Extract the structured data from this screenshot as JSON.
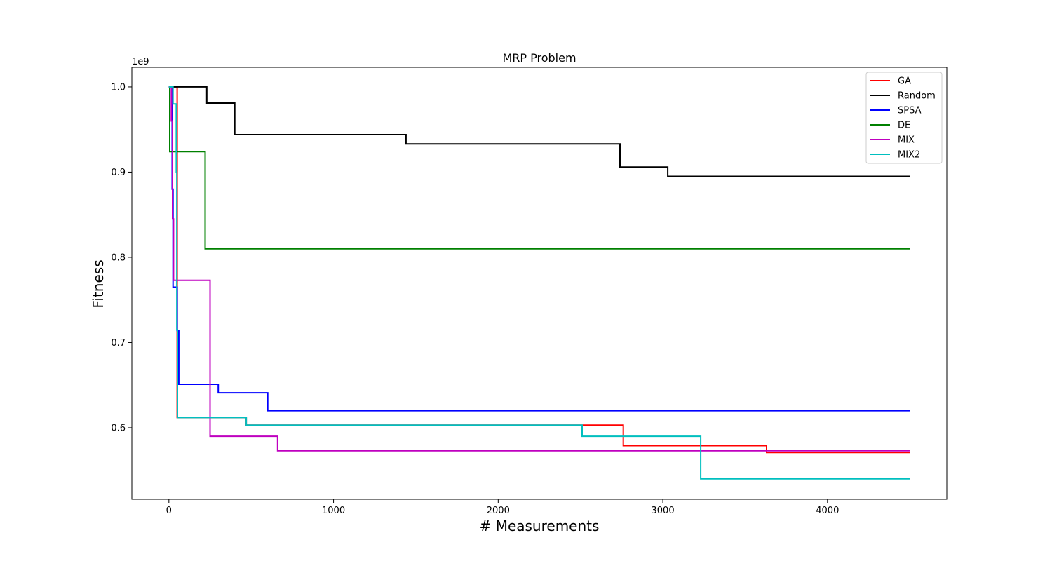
{
  "chart_data": {
    "type": "line",
    "step": true,
    "title": "MRP Problem",
    "xlabel": "# Measurements",
    "ylabel": "Fitness",
    "y_offset_label": "1e9",
    "xlim": [
      -225,
      4725
    ],
    "ylim": [
      0.516,
      1.023
    ],
    "xticks": [
      0,
      1000,
      2000,
      3000,
      4000
    ],
    "xtick_labels": [
      "0",
      "1000",
      "2000",
      "3000",
      "4000"
    ],
    "yticks": [
      0.6,
      0.7,
      0.8,
      0.9,
      1.0
    ],
    "ytick_labels": [
      "0.6",
      "0.7",
      "0.8",
      "0.9",
      "1.0"
    ],
    "grid": false,
    "legend_position": "upper right",
    "series": [
      {
        "name": "GA",
        "color": "#ff0000",
        "x": [
          0,
          50,
          470,
          2760,
          3630,
          4500
        ],
        "y": [
          1.0,
          0.612,
          0.603,
          0.579,
          0.571,
          0.571
        ]
      },
      {
        "name": "Random",
        "color": "#000000",
        "x": [
          0,
          230,
          400,
          1440,
          2740,
          3030,
          4500
        ],
        "y": [
          1.0,
          0.981,
          0.944,
          0.933,
          0.906,
          0.895,
          0.895
        ]
      },
      {
        "name": "SPSA",
        "color": "#0000ff",
        "x": [
          0,
          20,
          25,
          50,
          60,
          300,
          600,
          4500
        ],
        "y": [
          1.0,
          0.88,
          0.765,
          0.714,
          0.651,
          0.641,
          0.62,
          0.62
        ]
      },
      {
        "name": "DE",
        "color": "#008000",
        "x": [
          0,
          5,
          220,
          4500
        ],
        "y": [
          1.0,
          0.924,
          0.81,
          0.81
        ]
      },
      {
        "name": "MIX",
        "color": "#bf00bf",
        "x": [
          0,
          15,
          22,
          28,
          250,
          660,
          4500
        ],
        "y": [
          1.0,
          0.96,
          0.845,
          0.773,
          0.59,
          0.573,
          0.573
        ]
      },
      {
        "name": "MIX2",
        "color": "#00bfbf",
        "x": [
          0,
          25,
          45,
          48,
          52,
          470,
          2510,
          3230,
          4500
        ],
        "y": [
          1.0,
          0.98,
          0.9,
          0.715,
          0.612,
          0.603,
          0.59,
          0.54,
          0.54
        ]
      }
    ]
  }
}
